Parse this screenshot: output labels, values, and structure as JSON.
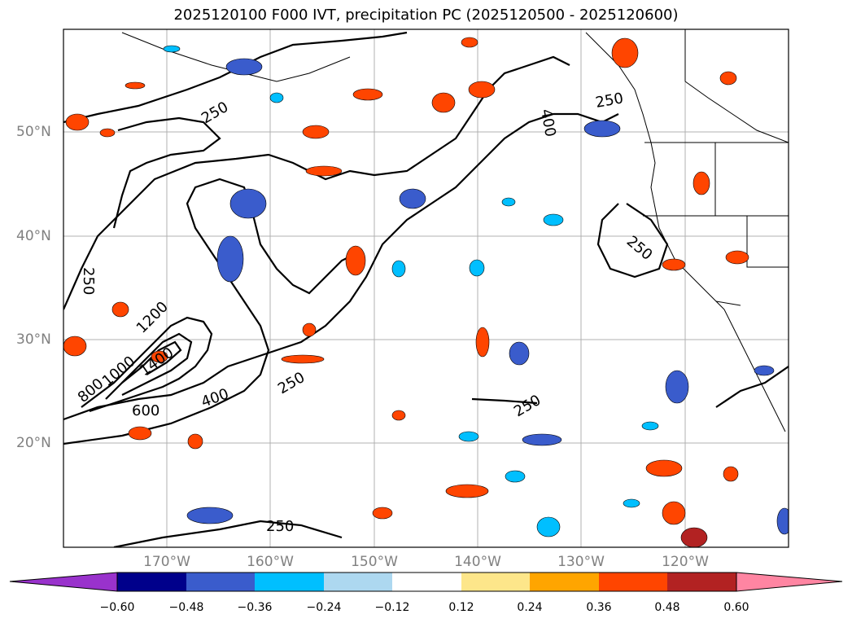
{
  "title": "2025120100 F000 IVT, precipitation PC (2025120500 - 2025120600)",
  "lat_labels": [
    "50°N",
    "40°N",
    "30°N",
    "20°N"
  ],
  "lon_labels": [
    "170°W",
    "160°W",
    "150°W",
    "140°W",
    "130°W",
    "120°W"
  ],
  "contour_labels": [
    "250",
    "250",
    "250",
    "250",
    "250",
    "250",
    "250",
    "400",
    "400",
    "600",
    "800",
    "1000",
    "1400",
    "1200"
  ],
  "colorbar": {
    "ticks": [
      "−0.60",
      "−0.48",
      "−0.36",
      "−0.24",
      "−0.12",
      "0.12",
      "0.24",
      "0.36",
      "0.48",
      "0.60"
    ],
    "colors": [
      "#9932cc",
      "#00008b",
      "#3a5ccc",
      "#00bfff",
      "#add8f0",
      "#ffffff",
      "#fde68a",
      "#ffa500",
      "#ff4500",
      "#b22222",
      "#ff85a2"
    ]
  }
}
